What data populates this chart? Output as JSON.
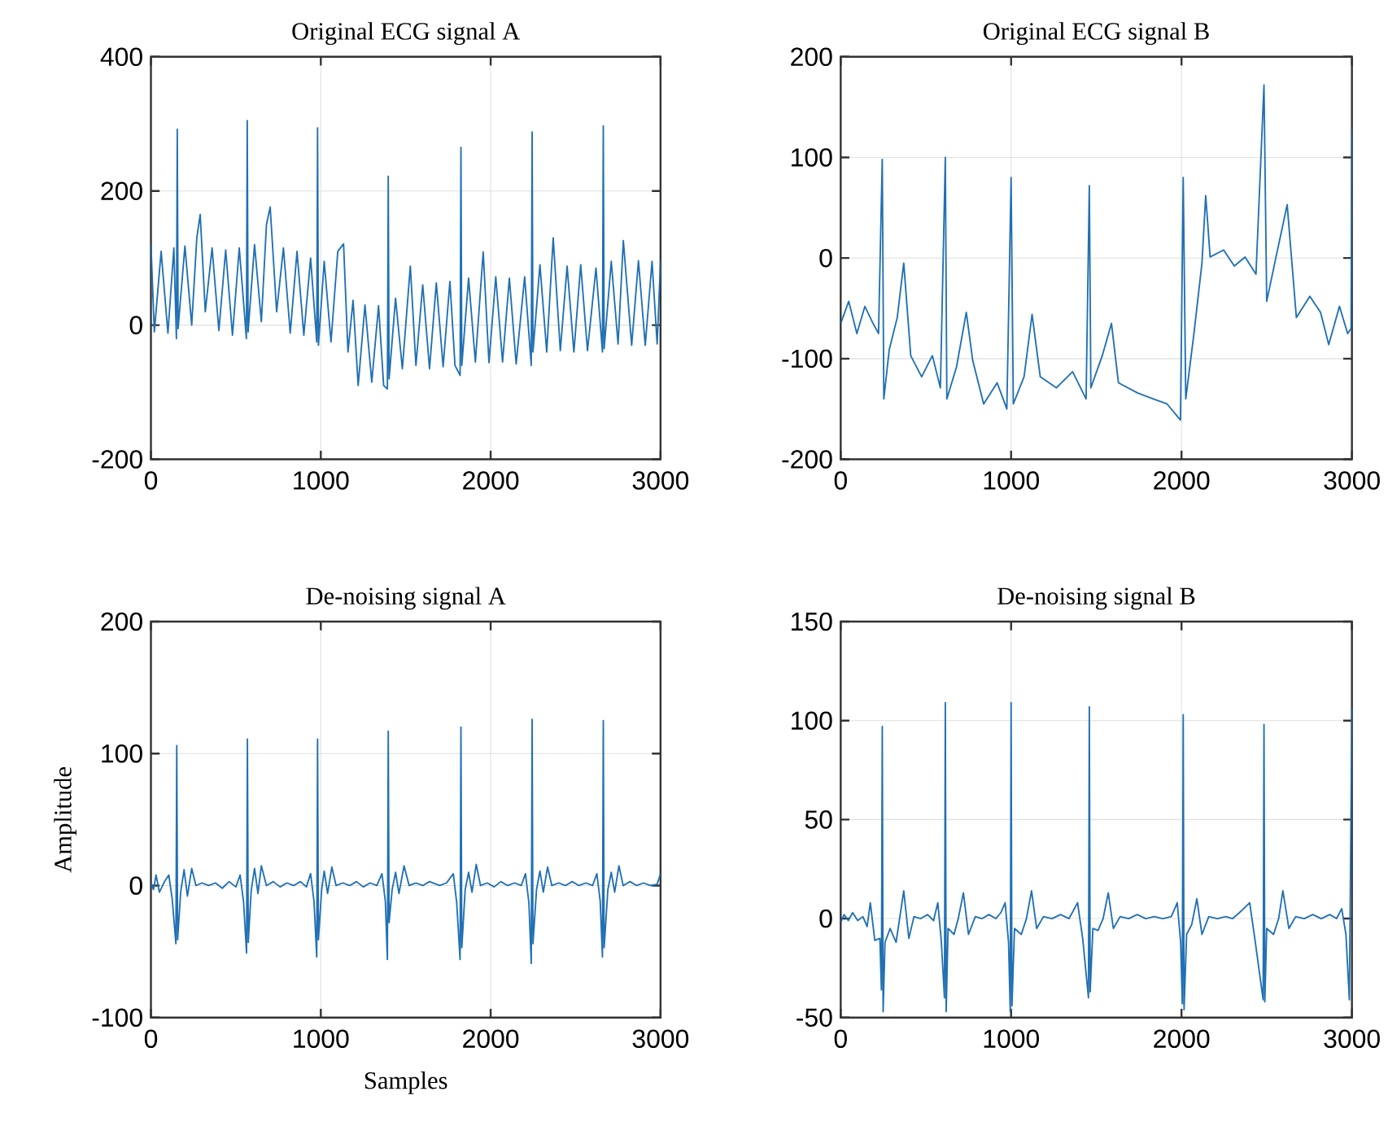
{
  "chart_data": [
    {
      "type": "line",
      "title": "Original ECG signal A",
      "color": "#2070b4",
      "grid": true,
      "xlim": [
        0,
        3000
      ],
      "xticks": [
        0,
        1000,
        2000,
        3000
      ],
      "ylim": [
        -200,
        400
      ],
      "yticks": [
        -200,
        0,
        200,
        400
      ],
      "x": [
        0,
        20,
        60,
        100,
        135,
        150,
        155,
        160,
        200,
        240,
        270,
        290,
        320,
        360,
        400,
        440,
        480,
        520,
        562,
        567,
        572,
        610,
        650,
        680,
        702,
        740,
        780,
        820,
        860,
        900,
        940,
        976,
        981,
        986,
        1020,
        1060,
        1100,
        1134,
        1160,
        1190,
        1220,
        1260,
        1300,
        1340,
        1370,
        1392,
        1397,
        1402,
        1440,
        1480,
        1527,
        1560,
        1600,
        1640,
        1680,
        1720,
        1760,
        1790,
        1820,
        1825,
        1830,
        1870,
        1910,
        1956,
        1990,
        2030,
        2070,
        2110,
        2150,
        2200,
        2239,
        2244,
        2249,
        2290,
        2330,
        2368,
        2410,
        2450,
        2490,
        2530,
        2570,
        2620,
        2658,
        2663,
        2668,
        2710,
        2750,
        2781,
        2830,
        2870,
        2910,
        2950,
        2980,
        3000
      ],
      "values": [
        121,
        -10,
        110,
        -12,
        115,
        -20,
        292,
        -5,
        118,
        0,
        130,
        165,
        20,
        115,
        -8,
        112,
        -15,
        115,
        -20,
        305,
        -10,
        120,
        5,
        150,
        176,
        20,
        115,
        -12,
        110,
        -15,
        100,
        -25,
        294,
        -30,
        95,
        -25,
        110,
        121,
        -40,
        37,
        -90,
        30,
        -85,
        29,
        -90,
        -95,
        222,
        -80,
        40,
        -65,
        88,
        -60,
        60,
        -65,
        63,
        -62,
        65,
        -60,
        -75,
        265,
        -60,
        70,
        -55,
        109,
        -56,
        72,
        -55,
        70,
        -58,
        72,
        -60,
        288,
        -40,
        90,
        -40,
        130,
        -38,
        88,
        -40,
        90,
        -38,
        85,
        -40,
        297,
        -35,
        95,
        -28,
        126,
        -30,
        96,
        -30,
        95,
        -28,
        96
      ]
    },
    {
      "type": "line",
      "title": "Original ECG signal B",
      "color": "#2070b4",
      "grid": true,
      "xlim": [
        0,
        3000
      ],
      "xticks": [
        0,
        1000,
        2000,
        3000
      ],
      "ylim": [
        -200,
        200
      ],
      "yticks": [
        -200,
        -100,
        0,
        100,
        200
      ],
      "x": [
        0,
        47,
        95,
        142,
        190,
        222,
        244,
        253,
        285,
        332,
        370,
        411,
        475,
        538,
        585,
        614,
        623,
        680,
        737,
        775,
        839,
        918,
        975,
        1000,
        1013,
        1076,
        1123,
        1171,
        1266,
        1361,
        1440,
        1459,
        1468,
        1535,
        1589,
        1630,
        1741,
        1835,
        1915,
        1994,
        2010,
        2025,
        2073,
        2120,
        2142,
        2168,
        2247,
        2310,
        2373,
        2437,
        2484,
        2500,
        2547,
        2620,
        2674,
        2753,
        2816,
        2864,
        2927,
        2975,
        2995,
        3000
      ],
      "values": [
        -65,
        -43,
        -75,
        -48,
        -65,
        -75,
        98,
        -140,
        -91,
        -59,
        -5,
        -97,
        -118,
        -97,
        -129,
        100,
        -140,
        -108,
        -54,
        -102,
        -145,
        -124,
        -150,
        80,
        -145,
        -118,
        -56,
        -118,
        -129,
        -113,
        -140,
        72,
        -129,
        -97,
        -65,
        -124,
        -134,
        -140,
        -145,
        -161,
        80,
        -140,
        -75,
        -5,
        62,
        1,
        8,
        -8,
        1,
        -16,
        172,
        -43,
        -5,
        53,
        -59,
        -38,
        -54,
        -86,
        -48,
        -75,
        -70,
        128
      ]
    },
    {
      "type": "line",
      "title": "De-noising signal A",
      "xlabel": "Samples",
      "ylabel": "Amplitude",
      "color": "#2070b4",
      "grid": true,
      "xlim": [
        0,
        3000
      ],
      "xticks": [
        0,
        1000,
        2000,
        3000
      ],
      "ylim": [
        -100,
        200
      ],
      "yticks": [
        -100,
        0,
        100,
        200
      ],
      "x": [
        0,
        15,
        30,
        50,
        80,
        105,
        125,
        147,
        152,
        157,
        175,
        195,
        215,
        240,
        265,
        300,
        340,
        380,
        420,
        460,
        500,
        525,
        545,
        563,
        568,
        573,
        590,
        610,
        630,
        650,
        680,
        720,
        760,
        800,
        840,
        880,
        915,
        940,
        960,
        976,
        981,
        986,
        1005,
        1020,
        1040,
        1065,
        1090,
        1130,
        1170,
        1210,
        1250,
        1290,
        1330,
        1360,
        1380,
        1392,
        1397,
        1402,
        1420,
        1440,
        1460,
        1490,
        1520,
        1560,
        1600,
        1640,
        1700,
        1740,
        1780,
        1800,
        1820,
        1825,
        1830,
        1850,
        1870,
        1890,
        1915,
        1940,
        1980,
        2020,
        2060,
        2100,
        2140,
        2180,
        2205,
        2225,
        2239,
        2244,
        2249,
        2270,
        2290,
        2310,
        2335,
        2360,
        2400,
        2440,
        2480,
        2520,
        2560,
        2600,
        2625,
        2645,
        2658,
        2663,
        2668,
        2690,
        2710,
        2730,
        2755,
        2780,
        2820,
        2860,
        2900,
        2940,
        2980,
        3000
      ],
      "values": [
        2,
        -3,
        8,
        -5,
        3,
        8,
        -10,
        -44,
        106,
        -41,
        -5,
        12,
        -8,
        13,
        0,
        2,
        0,
        2,
        -2,
        3,
        -1,
        8,
        -12,
        -51,
        111,
        -43,
        -4,
        13,
        -6,
        15,
        0,
        3,
        -1,
        2,
        0,
        3,
        -1,
        9,
        -12,
        -54,
        111,
        -41,
        -3,
        11,
        -6,
        14,
        0,
        2,
        0,
        3,
        -1,
        2,
        0,
        9,
        -12,
        -56,
        117,
        -28,
        -3,
        10,
        -6,
        15,
        0,
        2,
        0,
        3,
        0,
        2,
        9,
        -13,
        -56,
        120,
        -47,
        -3,
        10,
        -5,
        16,
        0,
        2,
        -1,
        3,
        0,
        2,
        0,
        9,
        -13,
        -59,
        126,
        -44,
        -3,
        11,
        -5,
        14,
        0,
        2,
        0,
        3,
        0,
        2,
        0,
        9,
        -12,
        -54,
        125,
        -47,
        -3,
        10,
        -5,
        15,
        0,
        3,
        0,
        2,
        0,
        1,
        9
      ]
    },
    {
      "type": "line",
      "title": "De-noising signal B",
      "color": "#2070b4",
      "grid": true,
      "xlim": [
        0,
        3000
      ],
      "xticks": [
        0,
        1000,
        2000,
        3000
      ],
      "ylim": [
        -50,
        150
      ],
      "yticks": [
        -50,
        0,
        50,
        100,
        150
      ],
      "x": [
        0,
        20,
        45,
        70,
        100,
        130,
        155,
        174,
        200,
        230,
        239,
        244,
        249,
        260,
        290,
        325,
        370,
        400,
        430,
        470,
        510,
        545,
        570,
        590,
        609,
        614,
        619,
        630,
        665,
        690,
        720,
        750,
        790,
        830,
        870,
        910,
        940,
        965,
        985,
        995,
        1000,
        1005,
        1020,
        1060,
        1090,
        1120,
        1150,
        1190,
        1240,
        1290,
        1340,
        1390,
        1420,
        1454,
        1459,
        1464,
        1480,
        1510,
        1540,
        1570,
        1600,
        1640,
        1690,
        1740,
        1790,
        1840,
        1890,
        1940,
        1975,
        1995,
        2005,
        2010,
        2015,
        2030,
        2060,
        2090,
        2120,
        2160,
        2210,
        2260,
        2300,
        2340,
        2400,
        2430,
        2479,
        2484,
        2489,
        2500,
        2540,
        2570,
        2595,
        2630,
        2670,
        2720,
        2770,
        2820,
        2870,
        2910,
        2940,
        2965,
        2985,
        3000
      ],
      "values": [
        -2,
        2,
        -1,
        3,
        -1,
        1,
        -4,
        8,
        -11,
        -10,
        -36,
        97,
        -47,
        -12,
        -5,
        -12,
        14,
        -10,
        1,
        0,
        2,
        -1,
        8,
        -11,
        -40,
        109,
        -47,
        -5,
        -8,
        0,
        13,
        -8,
        1,
        0,
        2,
        0,
        3,
        8,
        -12,
        -47,
        109,
        -44,
        -5,
        -8,
        0,
        14,
        -5,
        1,
        0,
        2,
        0,
        8,
        -10,
        -40,
        107,
        -37,
        -5,
        -6,
        0,
        13,
        -5,
        1,
        0,
        2,
        0,
        1,
        0,
        1,
        8,
        -12,
        -43,
        103,
        -46,
        -8,
        -3,
        10,
        -8,
        1,
        0,
        1,
        0,
        3,
        8,
        -10,
        -41,
        98,
        -42,
        -5,
        -8,
        0,
        14,
        -5,
        1,
        0,
        2,
        0,
        2,
        0,
        5,
        -8,
        -41,
        106
      ]
    }
  ]
}
